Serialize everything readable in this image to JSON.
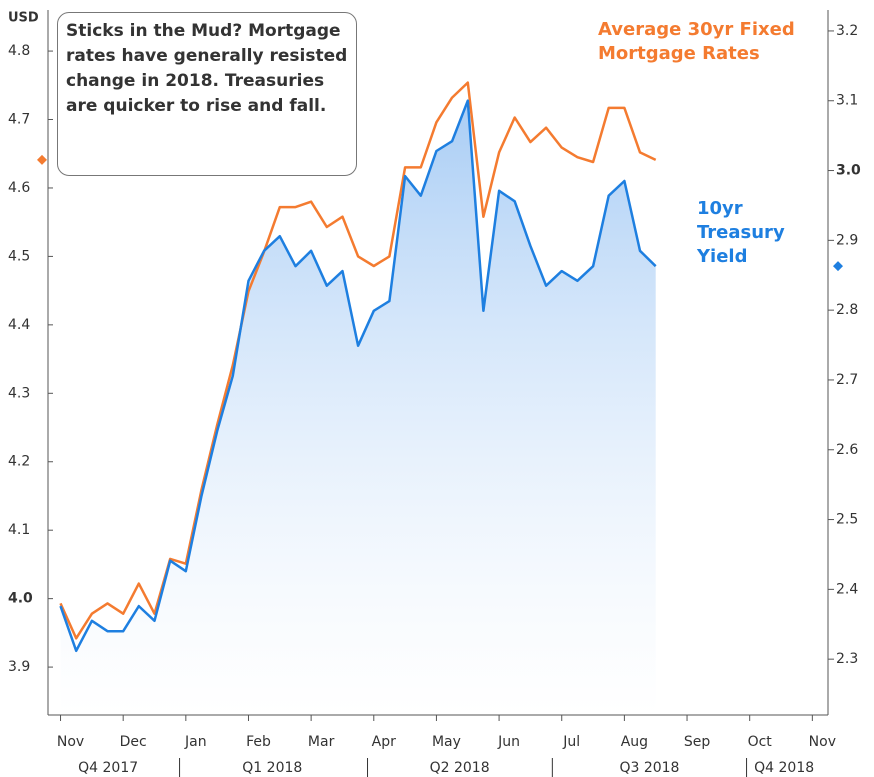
{
  "chart_data": {
    "type": "line",
    "ylabel": "USD",
    "annotation": "Sticks in the Mud? Mortgage rates have generally resisted change in 2018.  Treasuries are quicker to rise and fall.",
    "x": [
      0,
      0.25,
      0.5,
      0.75,
      1,
      1.25,
      1.5,
      1.75,
      2,
      2.25,
      2.5,
      2.75,
      3,
      3.25,
      3.5,
      3.75,
      4,
      4.25,
      4.5,
      4.75,
      5,
      5.25,
      5.5,
      5.75,
      6,
      6.25,
      6.5,
      6.75,
      7,
      7.25,
      7.5,
      7.75,
      8,
      8.25,
      8.5,
      8.75,
      9,
      9.25,
      9.5
    ],
    "series": [
      {
        "name": "Average 30yr Fixed Mortgage Rates",
        "color": "#f47b30",
        "values": [
          3.993,
          3.942,
          3.978,
          3.993,
          3.978,
          4.022,
          3.978,
          4.058,
          4.051,
          4.159,
          4.254,
          4.341,
          4.449,
          4.507,
          4.572,
          4.572,
          4.58,
          4.543,
          4.558,
          4.5,
          4.486,
          4.5,
          4.63,
          4.63,
          4.696,
          4.732,
          4.754,
          4.558,
          4.652,
          4.703,
          4.667,
          4.688,
          4.659,
          4.645,
          4.638,
          4.717,
          4.717,
          4.652,
          4.641
        ]
      },
      {
        "name": "10yr Treasury Yield",
        "color": "#1e7fe0",
        "axis": "y2",
        "area": true,
        "values": [
          2.376,
          2.312,
          2.355,
          2.34,
          2.34,
          2.376,
          2.355,
          2.441,
          2.426,
          2.534,
          2.627,
          2.706,
          2.842,
          2.885,
          2.906,
          2.863,
          2.885,
          2.835,
          2.856,
          2.749,
          2.799,
          2.813,
          2.992,
          2.964,
          3.028,
          3.042,
          3.1,
          2.799,
          2.971,
          2.956,
          2.892,
          2.835,
          2.856,
          2.842,
          2.863,
          2.964,
          2.985,
          2.885,
          2.863
        ]
      }
    ],
    "xlim": [
      -0.2,
      12.25
    ],
    "xticks": [
      {
        "value": 0,
        "label": "Nov"
      },
      {
        "value": 1,
        "label": "Dec"
      },
      {
        "value": 2,
        "label": "Jan"
      },
      {
        "value": 3,
        "label": "Feb"
      },
      {
        "value": 4,
        "label": "Mar"
      },
      {
        "value": 5,
        "label": "Apr"
      },
      {
        "value": 6,
        "label": "May"
      },
      {
        "value": 7,
        "label": "Jun"
      },
      {
        "value": 8,
        "label": "Jul"
      },
      {
        "value": 9,
        "label": "Aug"
      },
      {
        "value": 10,
        "label": "Sep"
      },
      {
        "value": 11,
        "label": "Oct"
      },
      {
        "value": 12,
        "label": "Nov"
      }
    ],
    "quarter_ticks": [
      {
        "value": 0.76,
        "label": "Q4 2017"
      },
      {
        "value": 3.38,
        "label": "Q1 2018"
      },
      {
        "value": 6.37,
        "label": "Q2 2018"
      },
      {
        "value": 9.4,
        "label": "Q3 2018"
      },
      {
        "value": 11.55,
        "label": "Q4 2018"
      }
    ],
    "quarter_separators": [
      1.9,
      4.9,
      7.85,
      10.95
    ],
    "ylim": [
      3.83,
      4.86
    ],
    "yticks": [
      3.9,
      {
        "value": 4,
        "label": "4.0"
      },
      4.1,
      4.2,
      4.3,
      4.4,
      4.5,
      4.6,
      4.7,
      4.8
    ],
    "y2lim": [
      2.22,
      3.23
    ],
    "y2ticks": [
      2.3,
      2.4,
      2.5,
      2.6,
      2.7,
      2.8,
      2.9,
      {
        "value": 3,
        "label": "3.0"
      },
      3.1,
      3.2
    ],
    "grid": false
  }
}
